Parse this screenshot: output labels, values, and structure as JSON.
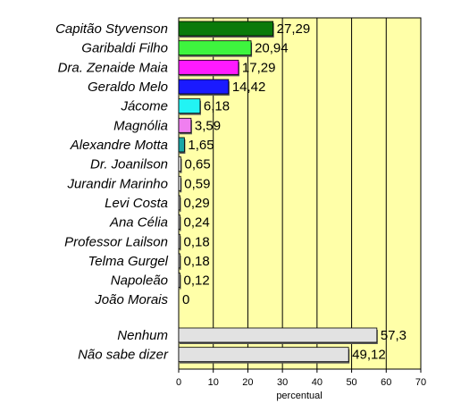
{
  "chart_data": {
    "type": "bar",
    "orientation": "horizontal",
    "xlabel": "percentual",
    "xlim": [
      0,
      70
    ],
    "xticks": [
      0,
      10,
      20,
      30,
      40,
      50,
      60,
      70
    ],
    "grid": true,
    "legend": "none",
    "plot_background": "#ffffa8",
    "groups": [
      {
        "categories": [
          "Capitão Styvenson",
          "Garibaldi Filho",
          "Dra. Zenaide Maia",
          "Geraldo Melo",
          "Jácome",
          "Magnólia",
          "Alexandre Motta",
          "Dr. Joanilson",
          "Jurandir Marinho",
          "Levi Costa",
          "Ana Célia",
          "Professor Lailson",
          "Telma Gurgel",
          "Napoleão",
          "João Morais"
        ],
        "values": [
          27.29,
          20.94,
          17.29,
          14.42,
          6.18,
          3.59,
          1.65,
          0.65,
          0.59,
          0.29,
          0.24,
          0.18,
          0.18,
          0.12,
          0
        ],
        "value_labels": [
          "27,29",
          "20,94",
          "17,29",
          "14,42",
          "6,18",
          "3,59",
          "1,65",
          "0,65",
          "0,59",
          "0,29",
          "0,24",
          "0,18",
          "0,18",
          "0,12",
          "0"
        ],
        "colors": [
          "#0a7a0a",
          "#3ef53e",
          "#ff1aff",
          "#1a1aff",
          "#22f4f4",
          "#f07ff0",
          "#1aa8a8",
          "#eaeaea",
          "#eaeaea",
          "#eaeaea",
          "#eaeaea",
          "#eaeaea",
          "#eaeaea",
          "#eaeaea",
          "#eaeaea"
        ]
      },
      {
        "categories": [
          "Nenhum",
          "Não sabe dizer"
        ],
        "values": [
          57.3,
          49.12
        ],
        "value_labels": [
          "57,3",
          "49,12"
        ],
        "colors": [
          "#e2e2e2",
          "#e2e2e2"
        ]
      }
    ]
  }
}
